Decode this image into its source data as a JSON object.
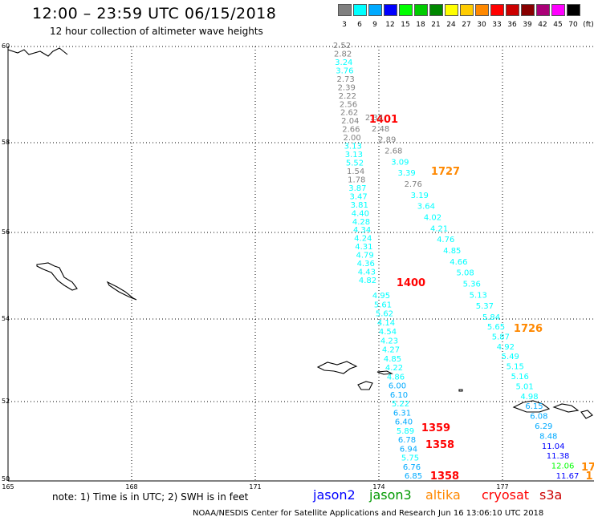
{
  "header": {
    "title": "12:00 – 23:59 UTC 06/15/2018",
    "subtitle": "12 hour collection of altimeter wave heights"
  },
  "color_scale": {
    "unit": "(ft)",
    "bins": [
      {
        "label": "3",
        "color": "#808080"
      },
      {
        "label": "6",
        "color": "#00ffff"
      },
      {
        "label": "9",
        "color": "#00aaff"
      },
      {
        "label": "12",
        "color": "#0000ff"
      },
      {
        "label": "15",
        "color": "#00ff00"
      },
      {
        "label": "18",
        "color": "#00cc00"
      },
      {
        "label": "21",
        "color": "#008800"
      },
      {
        "label": "24",
        "color": "#ffff00"
      },
      {
        "label": "27",
        "color": "#ffcc00"
      },
      {
        "label": "30",
        "color": "#ff8800"
      },
      {
        "label": "33",
        "color": "#ff0000"
      },
      {
        "label": "36",
        "color": "#cc0000"
      },
      {
        "label": "39",
        "color": "#880000"
      },
      {
        "label": "42",
        "color": "#aa0077"
      },
      {
        "label": "45",
        "color": "#ff00ff"
      },
      {
        "label": "70",
        "color": "#000000"
      }
    ]
  },
  "map": {
    "lon_labels": [
      "165",
      "168",
      "171",
      "174",
      "177"
    ],
    "lat_labels": [
      "60",
      "58",
      "56",
      "54",
      "52",
      "50"
    ],
    "tracks": [
      {
        "labels": [
          "1401"
        ],
        "color": "#ff0000",
        "values": [
          "2.52",
          "2.82",
          "3.24",
          "3.76",
          "2.73",
          "2.39",
          "2.22",
          "2.56",
          "2.62",
          "2.04",
          "2.66",
          "2.00",
          "3.13",
          "3.13",
          "5.52",
          "1.54",
          "1.78",
          "3.87",
          "3.47",
          "3.81",
          "4.40",
          "4.28",
          "4.34",
          "4.24",
          "4.31",
          "4.79",
          "4.36",
          "4.43",
          "4.82"
        ]
      },
      {
        "labels": [
          "1400"
        ],
        "color": "#ff0000",
        "values": [
          "4.95",
          "5.61",
          "5.62",
          "4.14",
          "4.54",
          "4.23",
          "4.27",
          "4.85",
          "4.22",
          "4.86",
          "6.00",
          "6.10",
          "5.22",
          "6.31",
          "6.40",
          "5.89",
          "6.78",
          "6.94",
          "5.75",
          "6.76",
          "6.85"
        ]
      },
      {
        "labels": [
          "1727"
        ],
        "color": "#ff8800",
        "values": [
          "2.32",
          "2.48",
          "2.89",
          "2.68",
          "3.09",
          "3.39",
          "2.76",
          "3.19",
          "3.64",
          "4.02",
          "4.21",
          "4.76",
          "4.85",
          "4.66",
          "5.08",
          "5.36",
          "5.13",
          "5.37",
          "5.84"
        ]
      },
      {
        "labels": [
          "1726"
        ],
        "color": "#ff8800",
        "values": [
          "5.65",
          "5.87",
          "4.92",
          "5.49",
          "5.15",
          "5.16",
          "5.01",
          "4.98",
          "6.15",
          "6.08",
          "6.29",
          "8.48",
          "11.04",
          "11.38",
          "12.06",
          "11.67"
        ]
      },
      {
        "labels": [
          "1359",
          "1358",
          "1358"
        ],
        "color": "#ff0000",
        "values": []
      },
      {
        "labels": [
          "17",
          "1"
        ],
        "color": "#ff8800",
        "values": []
      }
    ]
  },
  "footer": {
    "note": "note: 1) Time is in UTC;  2) SWH is in feet",
    "satellites": [
      {
        "name": "jason2",
        "color": "#0000ff"
      },
      {
        "name": "jason3",
        "color": "#009900"
      },
      {
        "name": "altika",
        "color": "#ff8800"
      },
      {
        "name": "cryosat",
        "color": "#ff0000"
      },
      {
        "name": "s3a",
        "color": "#cc0000"
      }
    ],
    "credit": "NOAA/NESDIS Center for Satellite Applications and Research    Jun 16 13:06:10 UTC 2018"
  }
}
